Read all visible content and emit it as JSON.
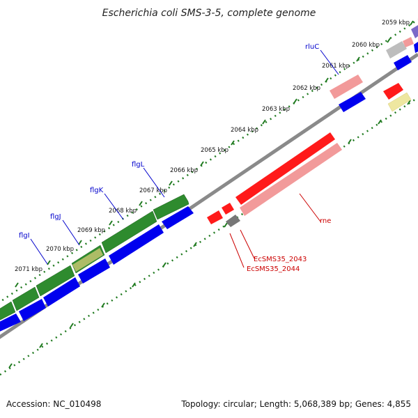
{
  "title": "Escherichia coli SMS-3-5, complete genome",
  "footer": {
    "accession": "Accession: NC_010498",
    "summary": "Topology: circular; Length: 5,068,389 bp; Genes: 4,855"
  },
  "colors": {
    "forward_green": "#2e8b2e",
    "forward_blue": "#0000ee",
    "red_gene": "#ff1a1a",
    "pink_gene": "#f29a9a",
    "gray_gene": "#777777",
    "yellow_gene": "#eee7a0",
    "backbone": "#8a8a8a",
    "tick_green": "#1f7a1f",
    "label_blue": "#0000cc",
    "label_red": "#cc0000"
  },
  "ticks": [
    {
      "label": "2059 kbp"
    },
    {
      "label": "2060 kbp"
    },
    {
      "label": "2061 kbp"
    },
    {
      "label": "2062 kbp"
    },
    {
      "label": "2063 kbp"
    },
    {
      "label": "2064 kbp"
    },
    {
      "label": "2065 kbp"
    },
    {
      "label": "2066 kbp"
    },
    {
      "label": "2067 kbp"
    },
    {
      "label": "2068 kbp"
    },
    {
      "label": "2069 kbp"
    },
    {
      "label": "2070 kbp"
    },
    {
      "label": "2071 kbp"
    }
  ],
  "gene_labels": {
    "rluC": "rluC",
    "flgL": "flgL",
    "flgK": "flgK",
    "flgJ": "flgJ",
    "flgI": "flgI",
    "rne": "rne",
    "EcSMS35_2043": "EcSMS35_2043",
    "EcSMS35_2044": "EcSMS35_2044"
  }
}
